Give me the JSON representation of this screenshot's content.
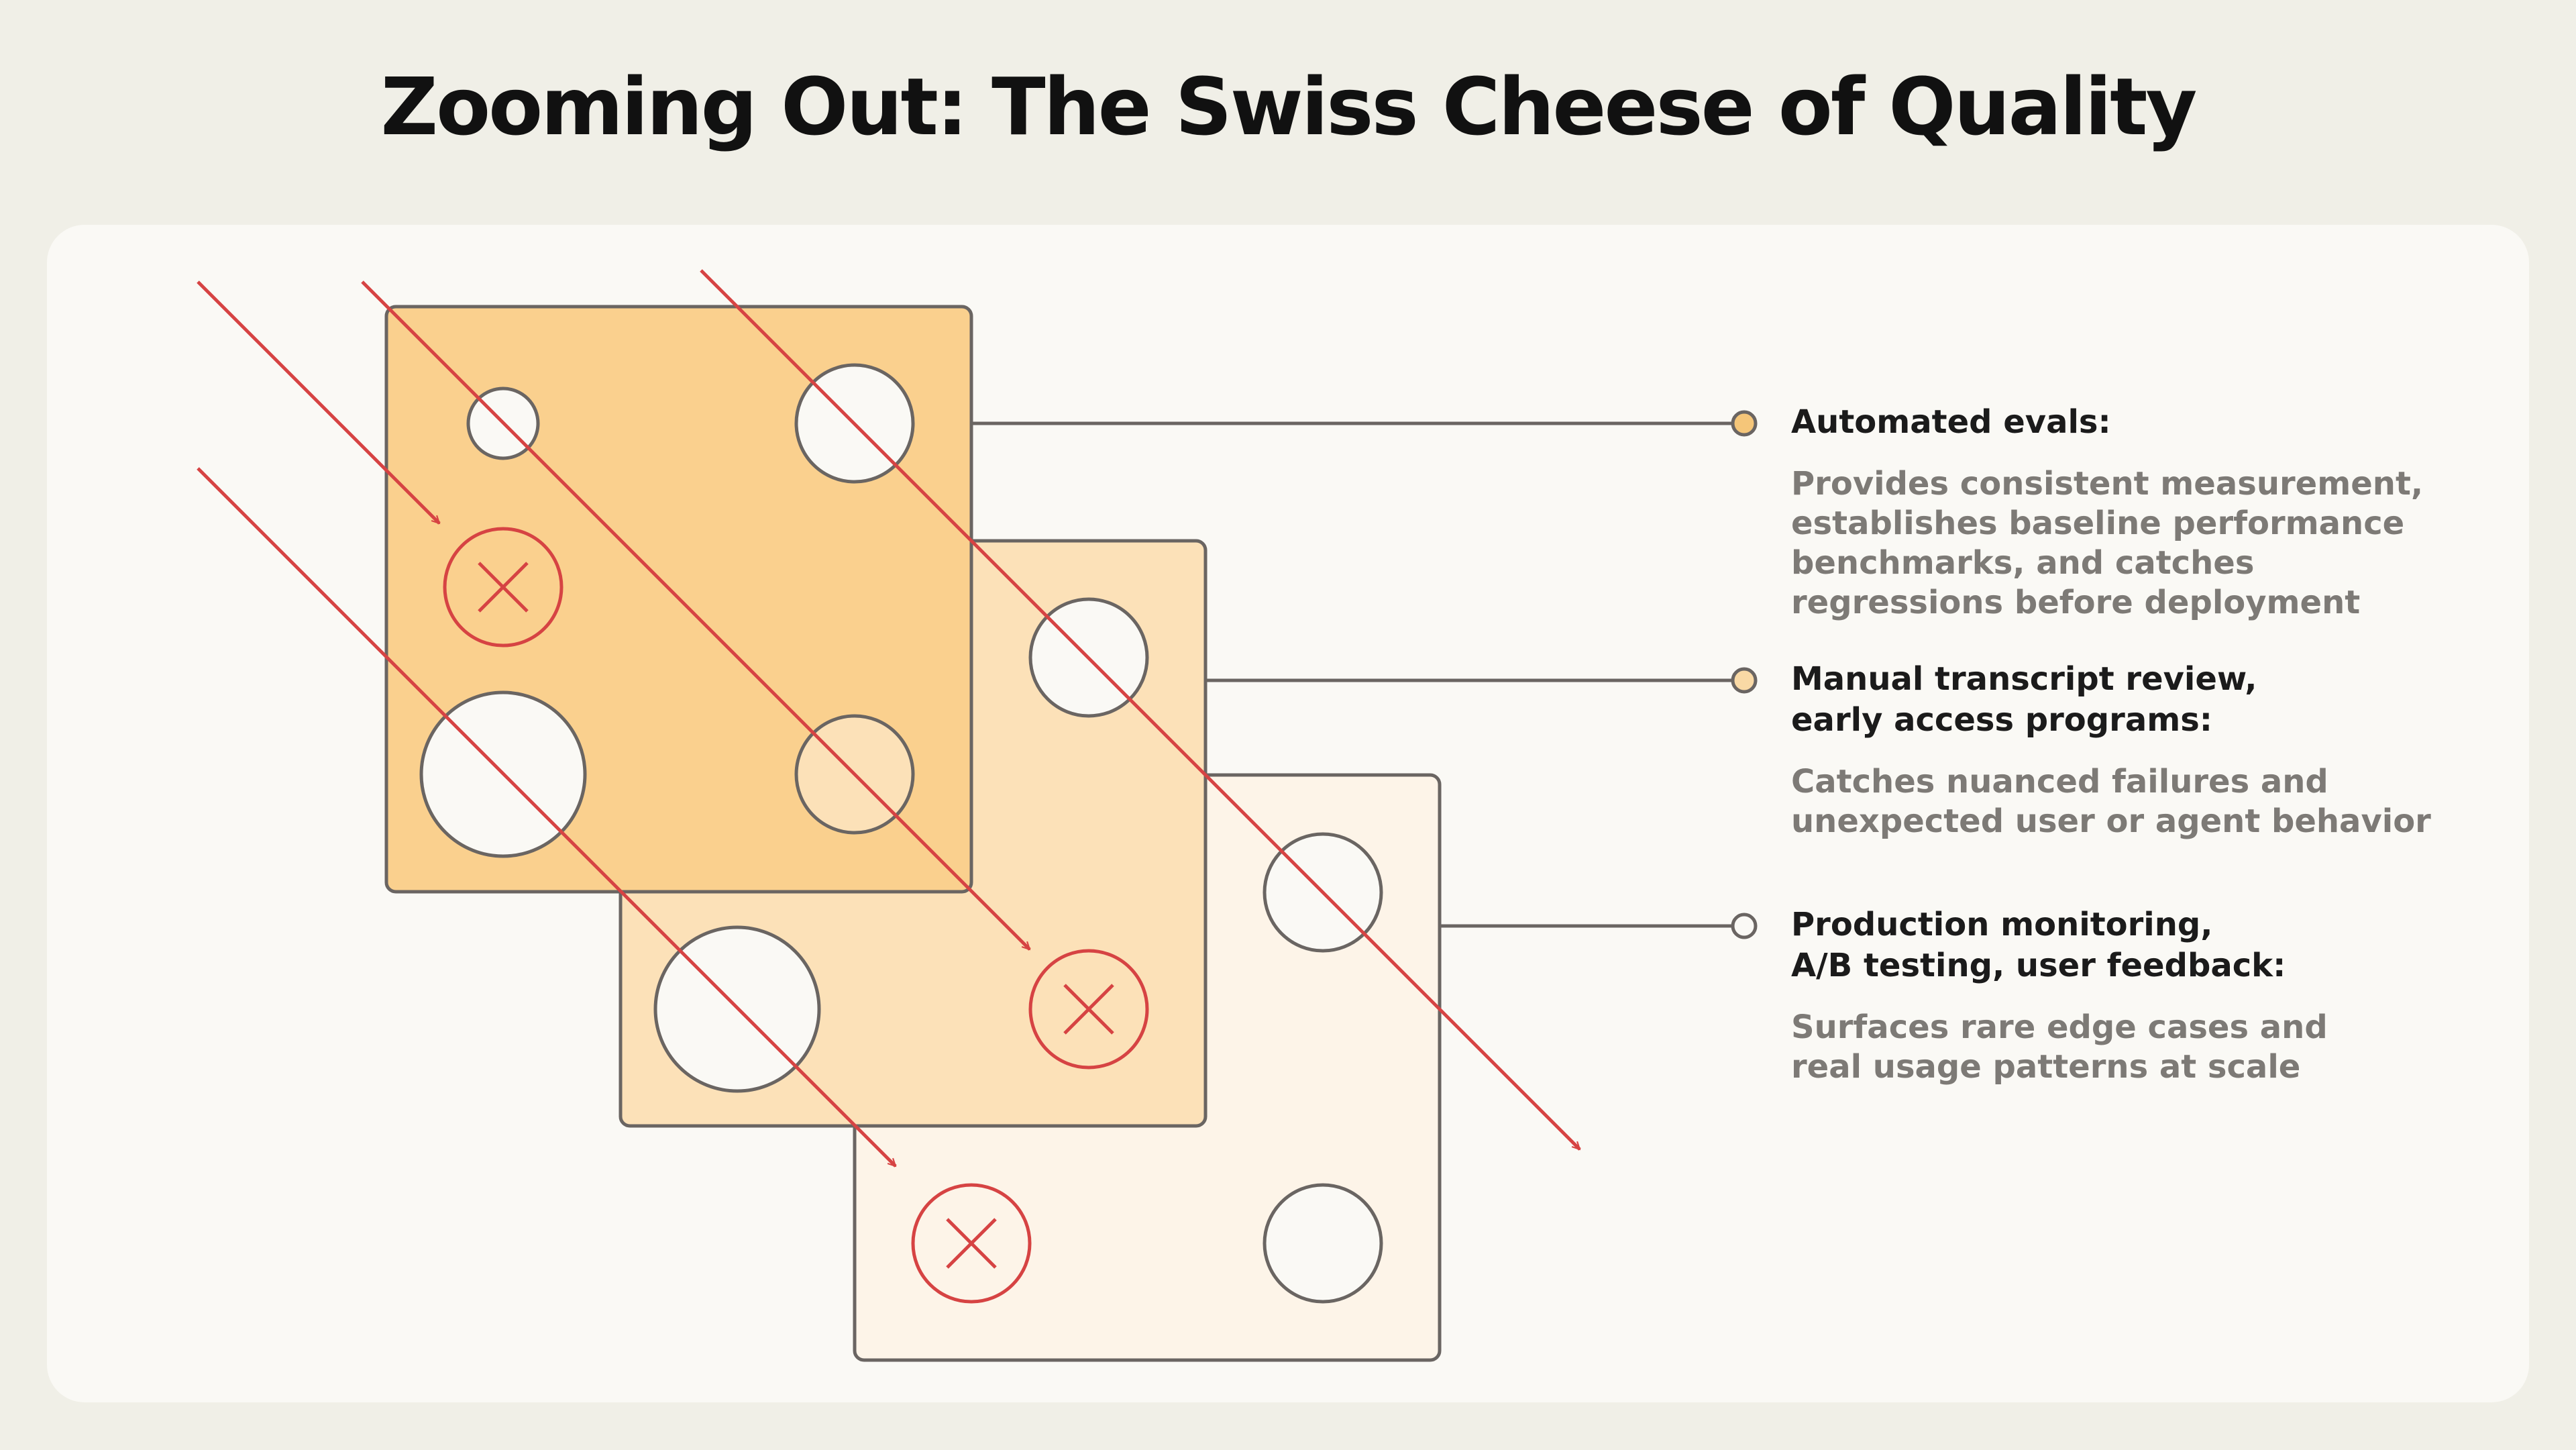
{
  "title": "Zooming Out: The Swiss Cheese of Quality",
  "layers": [
    {
      "title": "Automated evals:",
      "description": "Provides consistent measurement,\nestablishes baseline performance\nbenchmarks, and catches\nregressions before deployment",
      "fill": "#fad08e",
      "dot": "#f5c679"
    },
    {
      "title": "Manual transcript review,\nearly access programs:",
      "description": "Catches nuanced failures and\nunexpected user or agent behavior",
      "fill": "#fce1b8",
      "dot": "#f9d9a5"
    },
    {
      "title": "Production monitoring,\nA/B testing, user feedback:",
      "description": "Surfaces rare edge cases and\nreal usage patterns at scale",
      "fill": "#fdf4e8",
      "dot": "#faf9f5"
    }
  ],
  "colors": {
    "failure_red": "#d64343",
    "outline": "#6a6562",
    "hole": "#faf9f5"
  },
  "icons": [
    "x-icon"
  ]
}
